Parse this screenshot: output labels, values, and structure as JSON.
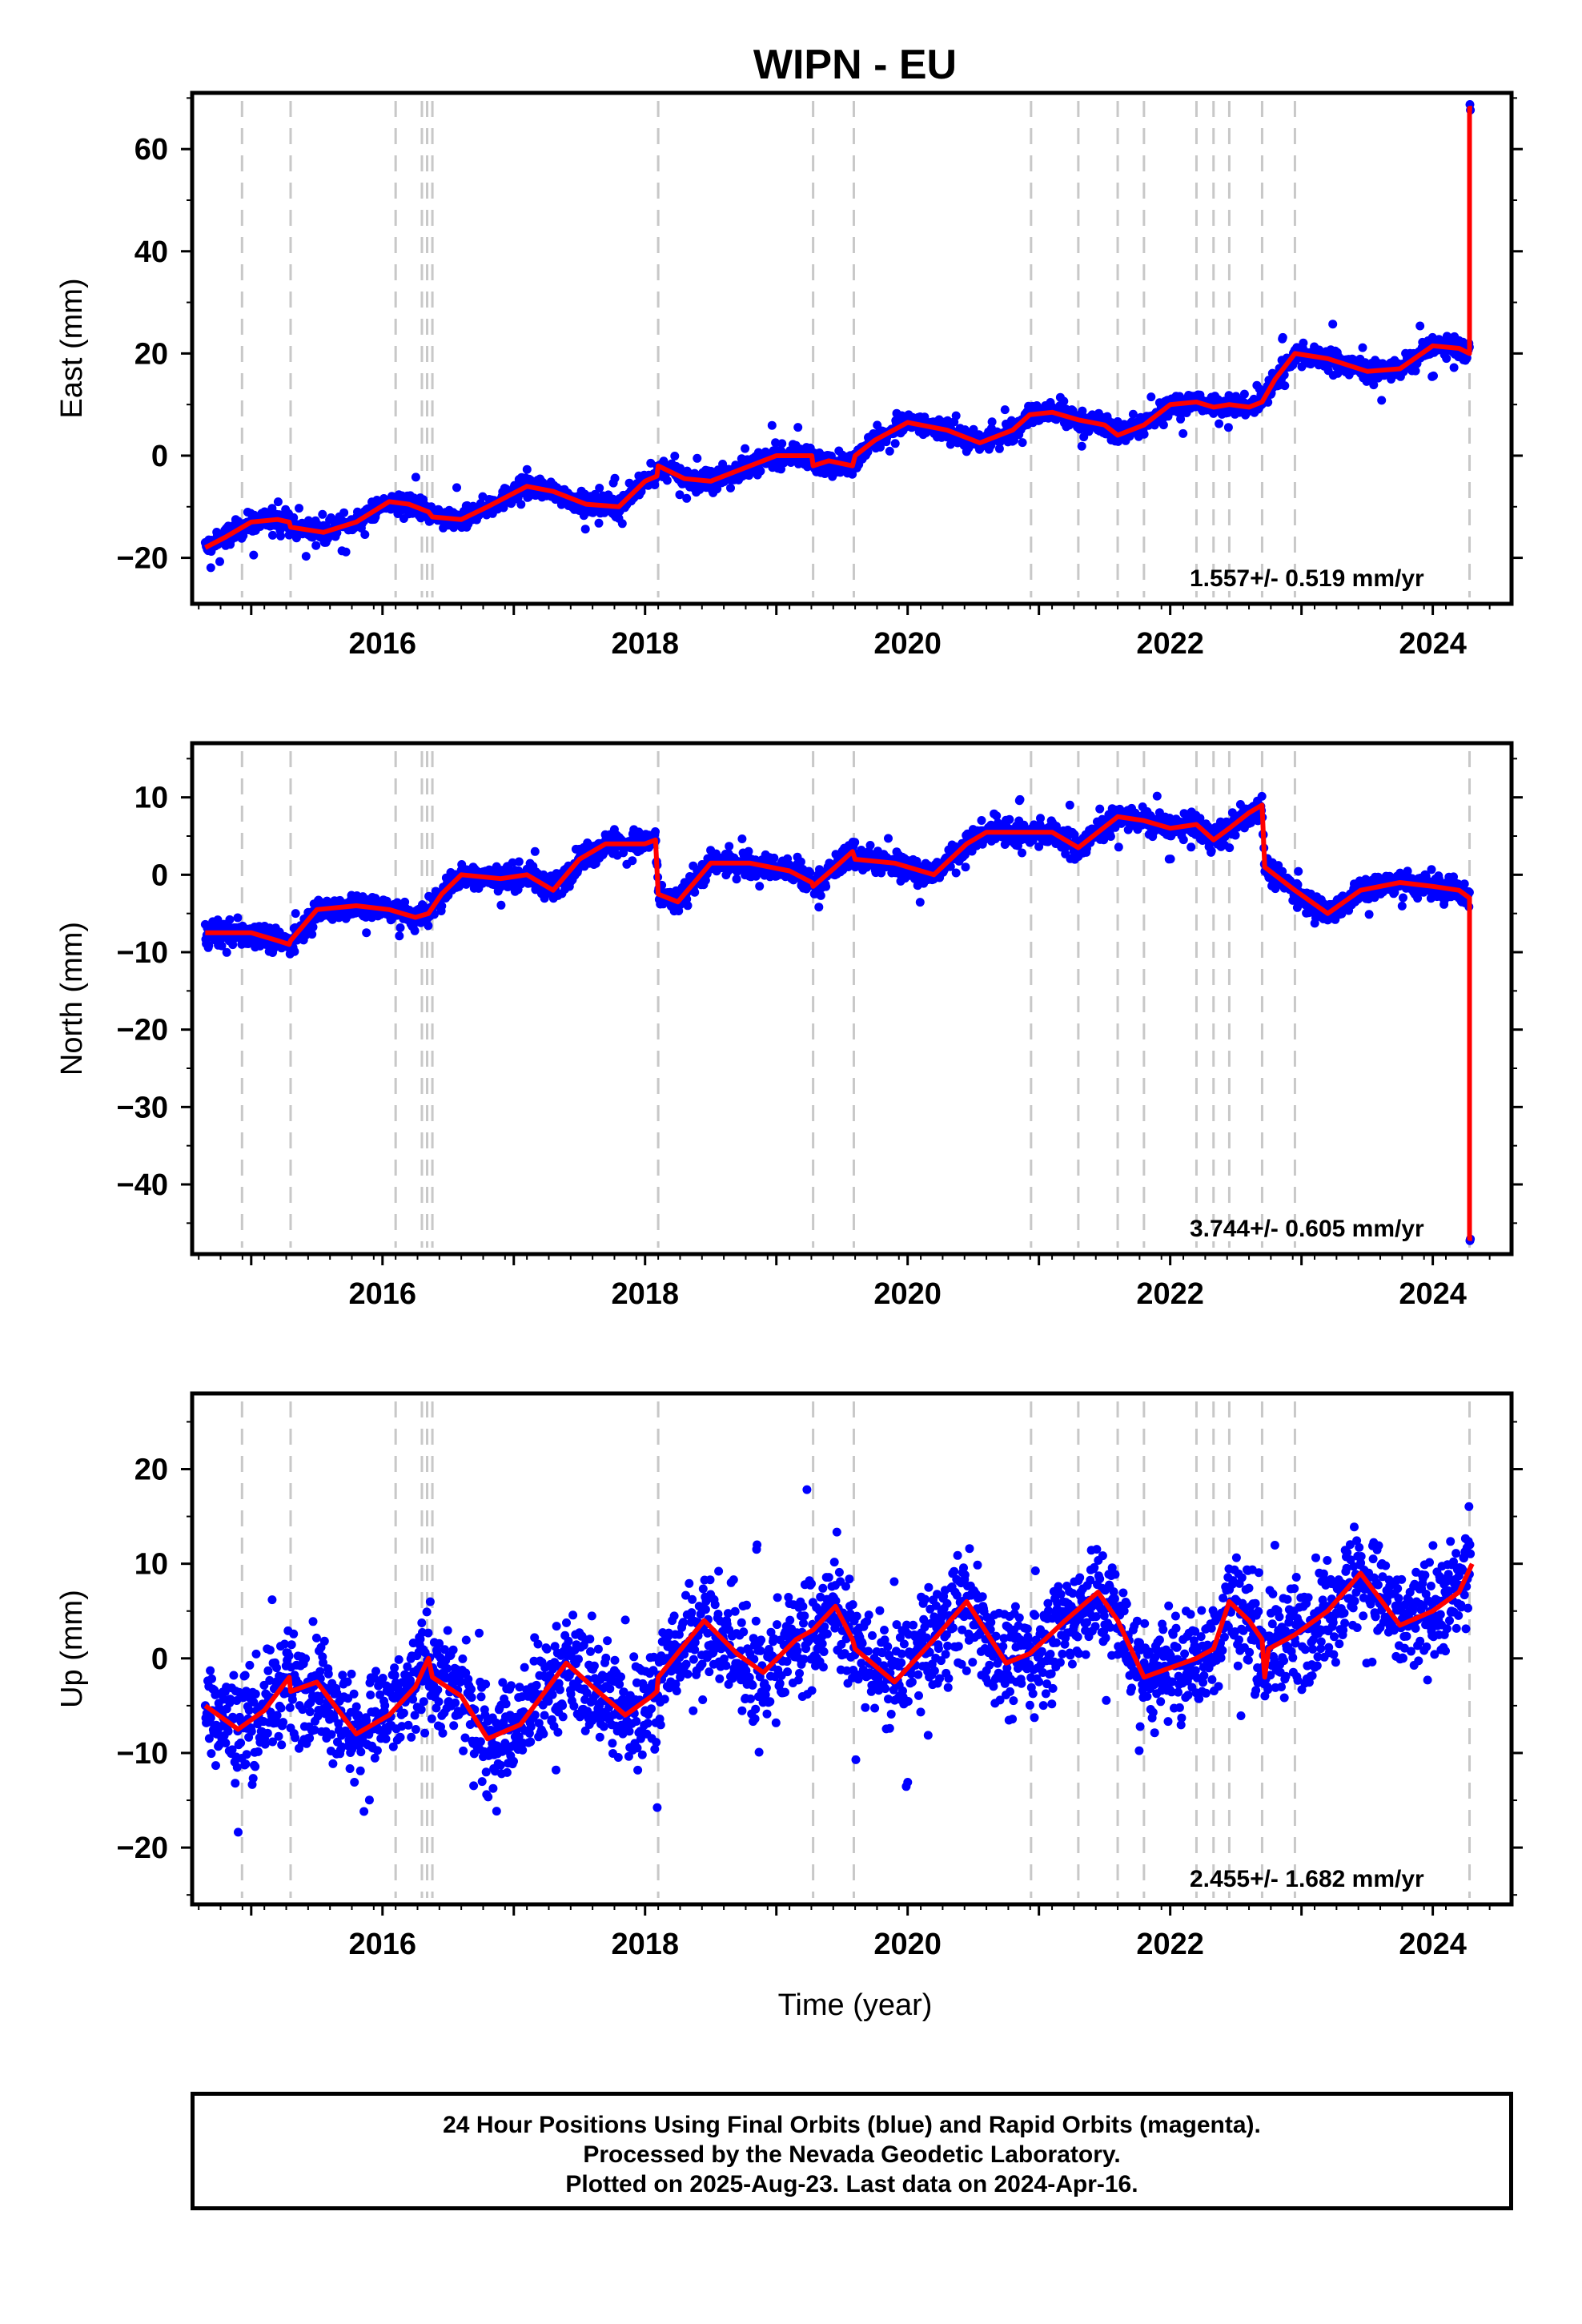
{
  "chart_data": {
    "type": "scatter",
    "title": "WIPN - EU",
    "xlabel": "Time (year)",
    "xlim": [
      2014.55,
      2024.6
    ],
    "xticks": [
      2016,
      2018,
      2020,
      2022,
      2024
    ],
    "grid": false,
    "colors": {
      "points": "#0000ff",
      "model": "#ff0000",
      "steps": "#c8c8c8",
      "frame": "#000000"
    },
    "step_epochs": [
      2014.93,
      2015.3,
      2016.1,
      2016.3,
      2016.34,
      2016.38,
      2018.1,
      2019.28,
      2019.59,
      2020.94,
      2021.3,
      2021.6,
      2021.8,
      2022.2,
      2022.33,
      2022.45,
      2022.7,
      2022.95,
      2024.28
    ],
    "panels": [
      {
        "ylabel": "East (mm)",
        "ylim": [
          -29,
          71
        ],
        "yticks": [
          -20,
          0,
          20,
          40,
          60
        ],
        "yticklabels": [
          "−20",
          "0",
          "20",
          "40",
          "60"
        ],
        "rate": "1.557+/- 0.519 mm/yr",
        "model": [
          [
            2014.65,
            -18
          ],
          [
            2014.8,
            -16
          ],
          [
            2015.0,
            -13
          ],
          [
            2015.2,
            -12.5
          ],
          [
            2015.29,
            -13
          ],
          [
            2015.3,
            -14
          ],
          [
            2015.55,
            -15
          ],
          [
            2015.8,
            -13
          ],
          [
            2016.05,
            -9
          ],
          [
            2016.2,
            -9.5
          ],
          [
            2016.35,
            -11
          ],
          [
            2016.38,
            -12
          ],
          [
            2016.6,
            -12.5
          ],
          [
            2016.8,
            -10
          ],
          [
            2017.1,
            -6
          ],
          [
            2017.3,
            -7
          ],
          [
            2017.55,
            -9.5
          ],
          [
            2017.8,
            -10
          ],
          [
            2018.0,
            -5
          ],
          [
            2018.09,
            -4
          ],
          [
            2018.1,
            -2
          ],
          [
            2018.3,
            -4.5
          ],
          [
            2018.5,
            -5
          ],
          [
            2018.7,
            -3
          ],
          [
            2019.0,
            0
          ],
          [
            2019.27,
            0
          ],
          [
            2019.28,
            -2
          ],
          [
            2019.4,
            -1
          ],
          [
            2019.58,
            -2
          ],
          [
            2019.6,
            0
          ],
          [
            2019.75,
            3
          ],
          [
            2020.0,
            6.5
          ],
          [
            2020.3,
            5
          ],
          [
            2020.55,
            2.5
          ],
          [
            2020.8,
            5
          ],
          [
            2020.93,
            8
          ],
          [
            2021.1,
            8.5
          ],
          [
            2021.3,
            7
          ],
          [
            2021.5,
            6
          ],
          [
            2021.6,
            4
          ],
          [
            2021.8,
            6
          ],
          [
            2022.0,
            10
          ],
          [
            2022.2,
            10.5
          ],
          [
            2022.33,
            9.5
          ],
          [
            2022.45,
            10
          ],
          [
            2022.6,
            9.5
          ],
          [
            2022.7,
            10.5
          ],
          [
            2022.8,
            15
          ],
          [
            2022.95,
            20
          ],
          [
            2023.2,
            19
          ],
          [
            2023.5,
            16.5
          ],
          [
            2023.75,
            17
          ],
          [
            2024.0,
            21.5
          ],
          [
            2024.2,
            21
          ],
          [
            2024.28,
            20
          ],
          [
            2024.28,
            68
          ],
          [
            2024.3,
            68
          ]
        ],
        "noise": 1.8,
        "amp": 1.5
      },
      {
        "ylabel": "North (mm)",
        "ylim": [
          -49,
          17
        ],
        "yticks": [
          -40,
          -30,
          -20,
          -10,
          0,
          10
        ],
        "yticklabels": [
          "−40",
          "−30",
          "−20",
          "−10",
          "0",
          "10"
        ],
        "rate": "3.744+/- 0.605 mm/yr",
        "model": [
          [
            2014.65,
            -7.5
          ],
          [
            2015.0,
            -7.5
          ],
          [
            2015.2,
            -8.5
          ],
          [
            2015.29,
            -9
          ],
          [
            2015.3,
            -8.5
          ],
          [
            2015.5,
            -4.5
          ],
          [
            2015.8,
            -4
          ],
          [
            2016.05,
            -4.5
          ],
          [
            2016.25,
            -5.5
          ],
          [
            2016.35,
            -5
          ],
          [
            2016.45,
            -2.5
          ],
          [
            2016.6,
            0
          ],
          [
            2016.9,
            -0.5
          ],
          [
            2017.1,
            0
          ],
          [
            2017.3,
            -2
          ],
          [
            2017.5,
            2
          ],
          [
            2017.7,
            4
          ],
          [
            2018.0,
            4
          ],
          [
            2018.08,
            4.5
          ],
          [
            2018.1,
            -2.5
          ],
          [
            2018.25,
            -3.5
          ],
          [
            2018.5,
            1.5
          ],
          [
            2018.8,
            1.5
          ],
          [
            2019.1,
            0.5
          ],
          [
            2019.27,
            -1
          ],
          [
            2019.28,
            -1.5
          ],
          [
            2019.45,
            1
          ],
          [
            2019.58,
            3
          ],
          [
            2019.6,
            2
          ],
          [
            2019.9,
            1.5
          ],
          [
            2020.2,
            0
          ],
          [
            2020.45,
            4
          ],
          [
            2020.6,
            5.5
          ],
          [
            2020.93,
            5.5
          ],
          [
            2021.1,
            5.5
          ],
          [
            2021.3,
            3.5
          ],
          [
            2021.6,
            7.5
          ],
          [
            2021.8,
            7
          ],
          [
            2022.0,
            6
          ],
          [
            2022.2,
            6.5
          ],
          [
            2022.33,
            4.5
          ],
          [
            2022.45,
            6
          ],
          [
            2022.6,
            8
          ],
          [
            2022.7,
            9
          ],
          [
            2022.72,
            1
          ],
          [
            2022.95,
            -2
          ],
          [
            2023.2,
            -5
          ],
          [
            2023.45,
            -2
          ],
          [
            2023.75,
            -1
          ],
          [
            2024.0,
            -1.5
          ],
          [
            2024.2,
            -2
          ],
          [
            2024.28,
            -3
          ],
          [
            2024.28,
            -47
          ],
          [
            2024.3,
            -47
          ]
        ],
        "noise": 1.4,
        "amp": 1.0
      },
      {
        "ylabel": "Up (mm)",
        "ylim": [
          -26,
          28
        ],
        "yticks": [
          -20,
          -10,
          0,
          10,
          20
        ],
        "yticklabels": [
          "−20",
          "−10",
          "0",
          "10",
          "20"
        ],
        "rate": "2.455+/- 1.682 mm/yr",
        "model": [
          [
            2014.65,
            -5
          ],
          [
            2014.9,
            -7.5
          ],
          [
            2015.1,
            -5.5
          ],
          [
            2015.29,
            -2
          ],
          [
            2015.3,
            -3.5
          ],
          [
            2015.5,
            -2.5
          ],
          [
            2015.8,
            -8
          ],
          [
            2016.05,
            -6
          ],
          [
            2016.25,
            -3
          ],
          [
            2016.35,
            0
          ],
          [
            2016.38,
            -2
          ],
          [
            2016.6,
            -4
          ],
          [
            2016.8,
            -8.5
          ],
          [
            2017.05,
            -7
          ],
          [
            2017.4,
            -0.5
          ],
          [
            2017.6,
            -3
          ],
          [
            2017.85,
            -6
          ],
          [
            2018.05,
            -4
          ],
          [
            2018.09,
            -3.5
          ],
          [
            2018.1,
            -2
          ],
          [
            2018.45,
            4
          ],
          [
            2018.7,
            0.5
          ],
          [
            2018.9,
            -1.5
          ],
          [
            2019.15,
            2
          ],
          [
            2019.28,
            3
          ],
          [
            2019.45,
            5.5
          ],
          [
            2019.58,
            2
          ],
          [
            2019.6,
            1
          ],
          [
            2019.9,
            -2.5
          ],
          [
            2020.2,
            2
          ],
          [
            2020.45,
            6
          ],
          [
            2020.75,
            -0.5
          ],
          [
            2020.93,
            0.5
          ],
          [
            2021.2,
            4
          ],
          [
            2021.45,
            7
          ],
          [
            2021.6,
            4
          ],
          [
            2021.8,
            -2
          ],
          [
            2022.0,
            -1
          ],
          [
            2022.2,
            0
          ],
          [
            2022.33,
            1
          ],
          [
            2022.45,
            6
          ],
          [
            2022.6,
            4
          ],
          [
            2022.7,
            2
          ],
          [
            2022.72,
            -2
          ],
          [
            2022.75,
            1
          ],
          [
            2022.95,
            2.5
          ],
          [
            2023.2,
            5
          ],
          [
            2023.45,
            9
          ],
          [
            2023.75,
            3.5
          ],
          [
            2024.0,
            5
          ],
          [
            2024.2,
            7
          ],
          [
            2024.3,
            10
          ]
        ],
        "noise": 5.0,
        "amp": 3.0
      }
    ]
  },
  "footer": {
    "line1": "24 Hour Positions Using Final Orbits (blue) and Rapid Orbits (magenta).",
    "line2": "Processed by the Nevada Geodetic Laboratory.",
    "line3": "Plotted on 2025-Aug-23. Last data on 2024-Apr-16."
  }
}
